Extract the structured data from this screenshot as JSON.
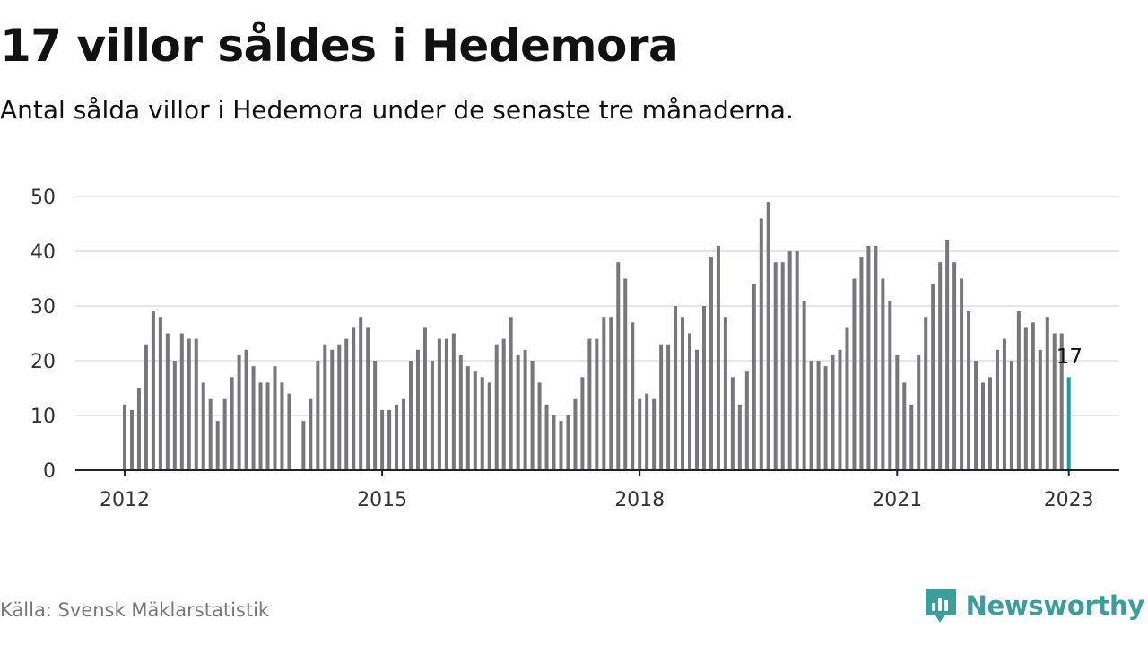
{
  "header": {
    "title": "17 villor såldes i Hedemora",
    "subtitle": "Antal sålda villor i Hedemora under de senaste tre månaderna."
  },
  "footer": {
    "source": "Källa: Svensk Mäklarstatistik",
    "brand": "Newsworthy",
    "brand_icon": "newsworthy-chart-bubble-icon"
  },
  "colors": {
    "bar": "#77767b",
    "highlight": "#1a9e9a",
    "grid": "#dddddd",
    "axis": "#222222",
    "brand": "#3a9e9a"
  },
  "chart_data": {
    "type": "bar",
    "title": "17 villor såldes i Hedemora",
    "subtitle": "Antal sålda villor i Hedemora under de senaste tre månaderna.",
    "xlabel": "",
    "ylabel": "",
    "ylim": [
      0,
      50
    ],
    "y_ticks": [
      0,
      10,
      20,
      30,
      40,
      50
    ],
    "x_ticks": [
      "2012",
      "2015",
      "2018",
      "2021",
      "2023"
    ],
    "grid": true,
    "legend": "none",
    "x_start": "2012-01",
    "x_end": "2023-01",
    "values": [
      12,
      11,
      15,
      23,
      29,
      28,
      25,
      20,
      25,
      24,
      24,
      16,
      13,
      9,
      13,
      17,
      21,
      22,
      19,
      16,
      16,
      19,
      16,
      14,
      null,
      9,
      13,
      20,
      23,
      22,
      23,
      24,
      26,
      28,
      26,
      20,
      11,
      11,
      12,
      13,
      20,
      22,
      26,
      20,
      24,
      24,
      25,
      21,
      19,
      18,
      17,
      16,
      23,
      24,
      28,
      21,
      22,
      20,
      16,
      12,
      10,
      9,
      10,
      13,
      17,
      24,
      24,
      28,
      28,
      38,
      35,
      27,
      13,
      14,
      13,
      23,
      23,
      30,
      28,
      25,
      22,
      30,
      39,
      41,
      28,
      17,
      12,
      18,
      34,
      46,
      49,
      38,
      38,
      40,
      40,
      31,
      20,
      20,
      19,
      21,
      22,
      26,
      35,
      39,
      41,
      41,
      35,
      31,
      21,
      16,
      12,
      21,
      28,
      34,
      38,
      42,
      38,
      35,
      29,
      20,
      16,
      17,
      22,
      24,
      20,
      29,
      26,
      27,
      22,
      28,
      25,
      25,
      17
    ],
    "highlight": {
      "label": "17",
      "value": 17,
      "date": "2023-01"
    }
  }
}
